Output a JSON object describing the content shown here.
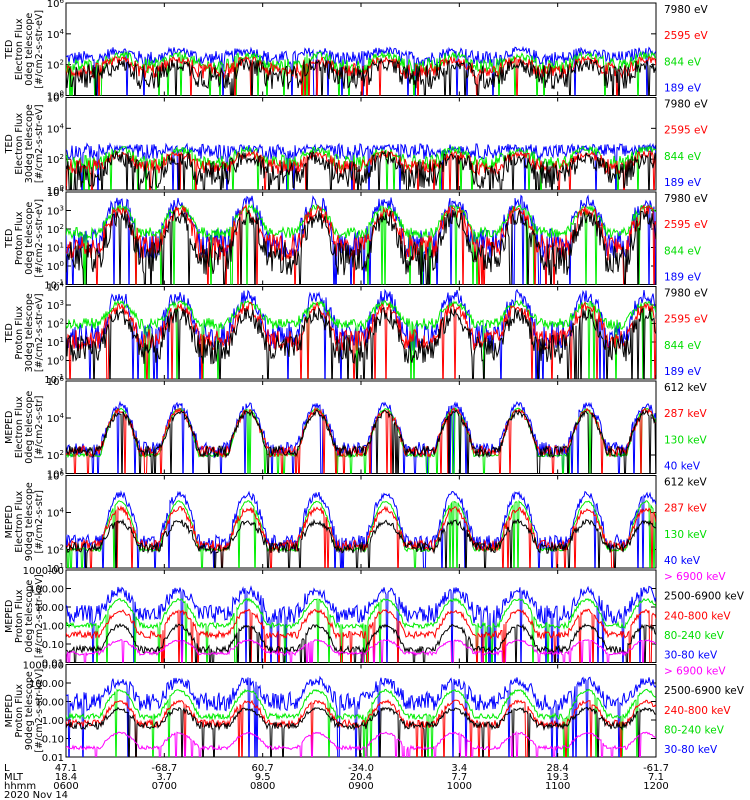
{
  "chart_data": {
    "type": "line",
    "title": "",
    "xaxis": {
      "row_labels": [
        "L",
        "MLT",
        "hhmm",
        "2020 Nov 14"
      ],
      "ticks": [
        {
          "L": "47.1",
          "MLT": "18.4",
          "hhmm": "0600"
        },
        {
          "L": "-68.7",
          "MLT": "3.7",
          "hhmm": "0700"
        },
        {
          "L": "60.7",
          "MLT": "9.5",
          "hhmm": "0800"
        },
        {
          "L": "-34.0",
          "MLT": "20.4",
          "hhmm": "0900"
        },
        {
          "L": "3.4",
          "MLT": "7.7",
          "hhmm": "1000"
        },
        {
          "L": "28.4",
          "MLT": "19.3",
          "hhmm": "1100"
        },
        {
          "L": "-61.7",
          "MLT": "7.1",
          "hhmm": "1200"
        }
      ],
      "range_hours": [
        6.0,
        12.0
      ]
    },
    "passes_hours": [
      6.55,
      7.15,
      7.85,
      8.55,
      9.25,
      9.95,
      10.6,
      11.3,
      11.9
    ],
    "panels": [
      {
        "id": "ted-e-0",
        "ylabel": [
          "TED",
          "Electron Flux",
          "0deg telescope",
          "[#/cm2-s-str-eV]"
        ],
        "scale": "log",
        "ylim_exp": [
          0,
          6
        ],
        "ytick_labels": [
          "10^0",
          "10^2",
          "10^4",
          "10^6"
        ],
        "series": [
          {
            "name": "7980 eV",
            "color": "#000000",
            "base": 1.2,
            "peak": 2.0,
            "noise": 0.8
          },
          {
            "name": "2595 eV",
            "color": "#ff0000",
            "base": 1.6,
            "peak": 2.3,
            "noise": 0.5
          },
          {
            "name": "844 eV",
            "color": "#00ee00",
            "base": 1.9,
            "peak": 2.6,
            "noise": 0.5
          },
          {
            "name": "189 eV",
            "color": "#0000ff",
            "base": 2.4,
            "peak": 2.9,
            "noise": 0.5
          }
        ]
      },
      {
        "id": "ted-e-30",
        "ylabel": [
          "TED",
          "Electron Flux",
          "30deg telescope",
          "[#/cm2-s-str-eV]"
        ],
        "scale": "log",
        "ylim_exp": [
          0,
          6
        ],
        "ytick_labels": [
          "10^0",
          "10^2",
          "10^4",
          "10^6"
        ],
        "series": [
          {
            "name": "7980 eV",
            "color": "#000000",
            "base": 1.0,
            "peak": 2.1,
            "noise": 0.9
          },
          {
            "name": "2595 eV",
            "color": "#ff0000",
            "base": 1.5,
            "peak": 2.3,
            "noise": 0.5
          },
          {
            "name": "844 eV",
            "color": "#00ee00",
            "base": 1.8,
            "peak": 2.6,
            "noise": 0.5
          },
          {
            "name": "189 eV",
            "color": "#0000ff",
            "base": 2.5,
            "peak": 2.7,
            "noise": 0.5
          }
        ]
      },
      {
        "id": "ted-p-0",
        "ylabel": [
          "TED",
          "Proton Flux",
          "0deg telescope",
          "[#/cm2-s-str-eV]"
        ],
        "scale": "log",
        "ylim_exp": [
          -1,
          4
        ],
        "ytick_labels": [
          "10^-1",
          "10^0",
          "10^1",
          "10^2",
          "10^3",
          "10^4"
        ],
        "series": [
          {
            "name": "7980 eV",
            "color": "#000000",
            "base": 0.4,
            "peak": 2.7,
            "noise": 0.9
          },
          {
            "name": "2595 eV",
            "color": "#ff0000",
            "base": 1.0,
            "peak": 3.0,
            "noise": 0.7
          },
          {
            "name": "844 eV",
            "color": "#00ee00",
            "base": 1.8,
            "peak": 3.2,
            "noise": 0.3
          },
          {
            "name": "189 eV",
            "color": "#0000ff",
            "base": 1.2,
            "peak": 3.5,
            "noise": 0.8
          }
        ]
      },
      {
        "id": "ted-p-30",
        "ylabel": [
          "TED",
          "Proton Flux",
          "30deg telescope",
          "[#/cm2-s-str-eV]"
        ],
        "scale": "log",
        "ylim_exp": [
          -1,
          4
        ],
        "ytick_labels": [
          "10^-1",
          "10^0",
          "10^1",
          "10^2",
          "10^3",
          "10^4"
        ],
        "series": [
          {
            "name": "7980 eV",
            "color": "#000000",
            "base": 0.6,
            "peak": 2.5,
            "noise": 0.8
          },
          {
            "name": "2595 eV",
            "color": "#ff0000",
            "base": 1.1,
            "peak": 2.9,
            "noise": 0.6
          },
          {
            "name": "844 eV",
            "color": "#00ee00",
            "base": 2.0,
            "peak": 3.1,
            "noise": 0.3
          },
          {
            "name": "189 eV",
            "color": "#0000ff",
            "base": 1.3,
            "peak": 3.5,
            "noise": 0.8
          }
        ]
      },
      {
        "id": "meped-e-0",
        "ylabel": [
          "MEPED",
          "Electron Flux",
          "0deg telescope",
          "[#/cm2-s-str]"
        ],
        "scale": "log",
        "ylim_exp": [
          1,
          6
        ],
        "ytick_labels": [
          "10^1",
          "10^2",
          "10^4",
          "10^6"
        ],
        "series": [
          {
            "name": "612 keV",
            "color": "#000000",
            "base": 2.2,
            "peak": 4.3,
            "noise": 0.3
          },
          {
            "name": "287 keV",
            "color": "#ff0000",
            "base": 2.2,
            "peak": 4.4,
            "noise": 0.3
          },
          {
            "name": "130 keV",
            "color": "#00ee00",
            "base": 2.0,
            "peak": 4.5,
            "noise": 0.1
          },
          {
            "name": "40 keV",
            "color": "#0000ff",
            "base": 2.3,
            "peak": 4.7,
            "noise": 0.4
          }
        ]
      },
      {
        "id": "meped-e-90",
        "ylabel": [
          "MEPED",
          "Electron Flux",
          "90deg telescope",
          "[#/cm2-s-str]"
        ],
        "scale": "log",
        "ylim_exp": [
          1,
          6
        ],
        "ytick_labels": [
          "10^1",
          "10^2",
          "10^4",
          "10^6"
        ],
        "series": [
          {
            "name": "612 keV",
            "color": "#000000",
            "base": 2.1,
            "peak": 3.5,
            "noise": 0.3
          },
          {
            "name": "287 keV",
            "color": "#ff0000",
            "base": 2.2,
            "peak": 4.2,
            "noise": 0.3
          },
          {
            "name": "130 keV",
            "color": "#00ee00",
            "base": 2.0,
            "peak": 4.6,
            "noise": 0.1
          },
          {
            "name": "40 keV",
            "color": "#0000ff",
            "base": 2.4,
            "peak": 5.0,
            "noise": 0.4
          }
        ]
      },
      {
        "id": "meped-p-0",
        "ylabel": [
          "MEPED",
          "Proton Flux",
          "0deg telescope",
          "[#/cm2-s-str-keV]"
        ],
        "scale": "log",
        "ylim_exp": [
          -2,
          3
        ],
        "ytick_labels": [
          "0.01",
          "0.10",
          "1.00",
          "10.00",
          "100.00",
          "1000.00"
        ],
        "series": [
          {
            "name": "> 6900 keV",
            "color": "#ff00ff",
            "base": -1.5,
            "peak": -0.8,
            "noise": 0.1
          },
          {
            "name": "2500-6900 keV",
            "color": "#000000",
            "base": -1.3,
            "peak": 0.0,
            "noise": 0.2
          },
          {
            "name": "240-800 keV",
            "color": "#ff0000",
            "base": -0.5,
            "peak": 0.8,
            "noise": 0.2
          },
          {
            "name": "80-240 keV",
            "color": "#00ee00",
            "base": 0.0,
            "peak": 1.4,
            "noise": 0.15
          },
          {
            "name": "30-80 keV",
            "color": "#0000ff",
            "base": 0.6,
            "peak": 1.9,
            "noise": 0.5
          }
        ]
      },
      {
        "id": "meped-p-90",
        "ylabel": [
          "MEPED",
          "Proton Flux",
          "90deg telescope",
          "[#/cm2-s-str-keV]"
        ],
        "scale": "log",
        "ylim_exp": [
          -2,
          3
        ],
        "ytick_labels": [
          "0.01",
          "0.10",
          "1.00",
          "10.00",
          "100.00",
          "1000.00"
        ],
        "series": [
          {
            "name": "> 6900 keV",
            "color": "#ff00ff",
            "base": -1.5,
            "peak": -0.7,
            "noise": 0.1
          },
          {
            "name": "2500-6900 keV",
            "color": "#000000",
            "base": -0.3,
            "peak": 0.6,
            "noise": 0.2
          },
          {
            "name": "240-800 keV",
            "color": "#ff0000",
            "base": -0.2,
            "peak": 1.0,
            "noise": 0.2
          },
          {
            "name": "80-240 keV",
            "color": "#00ee00",
            "base": 0.2,
            "peak": 1.6,
            "noise": 0.15
          },
          {
            "name": "30-80 keV",
            "color": "#0000ff",
            "base": 1.0,
            "peak": 2.1,
            "noise": 0.5
          }
        ]
      }
    ]
  }
}
